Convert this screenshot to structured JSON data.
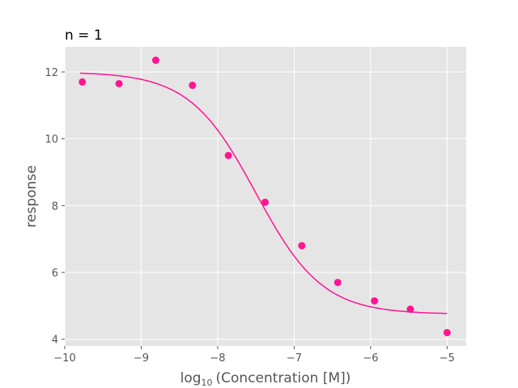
{
  "chart_data": {
    "type": "scatter",
    "title": "n = 1",
    "xlabel_prefix": "log",
    "xlabel_sub": "10",
    "xlabel_suffix": "(Concentration [M])",
    "ylabel": "response",
    "xlim": [
      -10,
      -4.75
    ],
    "ylim": [
      3.8,
      12.75
    ],
    "x_ticks": [
      -10,
      -9,
      -8,
      -7,
      -6,
      -5
    ],
    "x_tick_labels": [
      "−10",
      "−9",
      "−8",
      "−7",
      "−6",
      "−5"
    ],
    "y_ticks": [
      4,
      6,
      8,
      10,
      12
    ],
    "y_tick_labels": [
      "4",
      "6",
      "8",
      "10",
      "12"
    ],
    "grid": true,
    "colors": {
      "points": "#ff1493",
      "fit": "#ff1493",
      "plot_bg": "#e5e5e5",
      "grid": "#ffffff"
    },
    "series": [
      {
        "type": "scatter",
        "x": [
          -9.77,
          -9.29,
          -8.81,
          -8.33,
          -7.86,
          -7.38,
          -6.9,
          -6.43,
          -5.95,
          -5.48,
          -5.0
        ],
        "y": [
          11.7,
          11.65,
          12.35,
          11.6,
          9.5,
          8.1,
          6.8,
          5.7,
          5.15,
          4.9,
          4.2
        ]
      },
      {
        "type": "line",
        "fit": {
          "model": "four-parameter-logistic",
          "top": 12.0,
          "bottom": 4.75,
          "log_ec50": -7.5,
          "hill": 1.0
        },
        "x_range": [
          -9.8,
          -5.0
        ]
      }
    ]
  }
}
